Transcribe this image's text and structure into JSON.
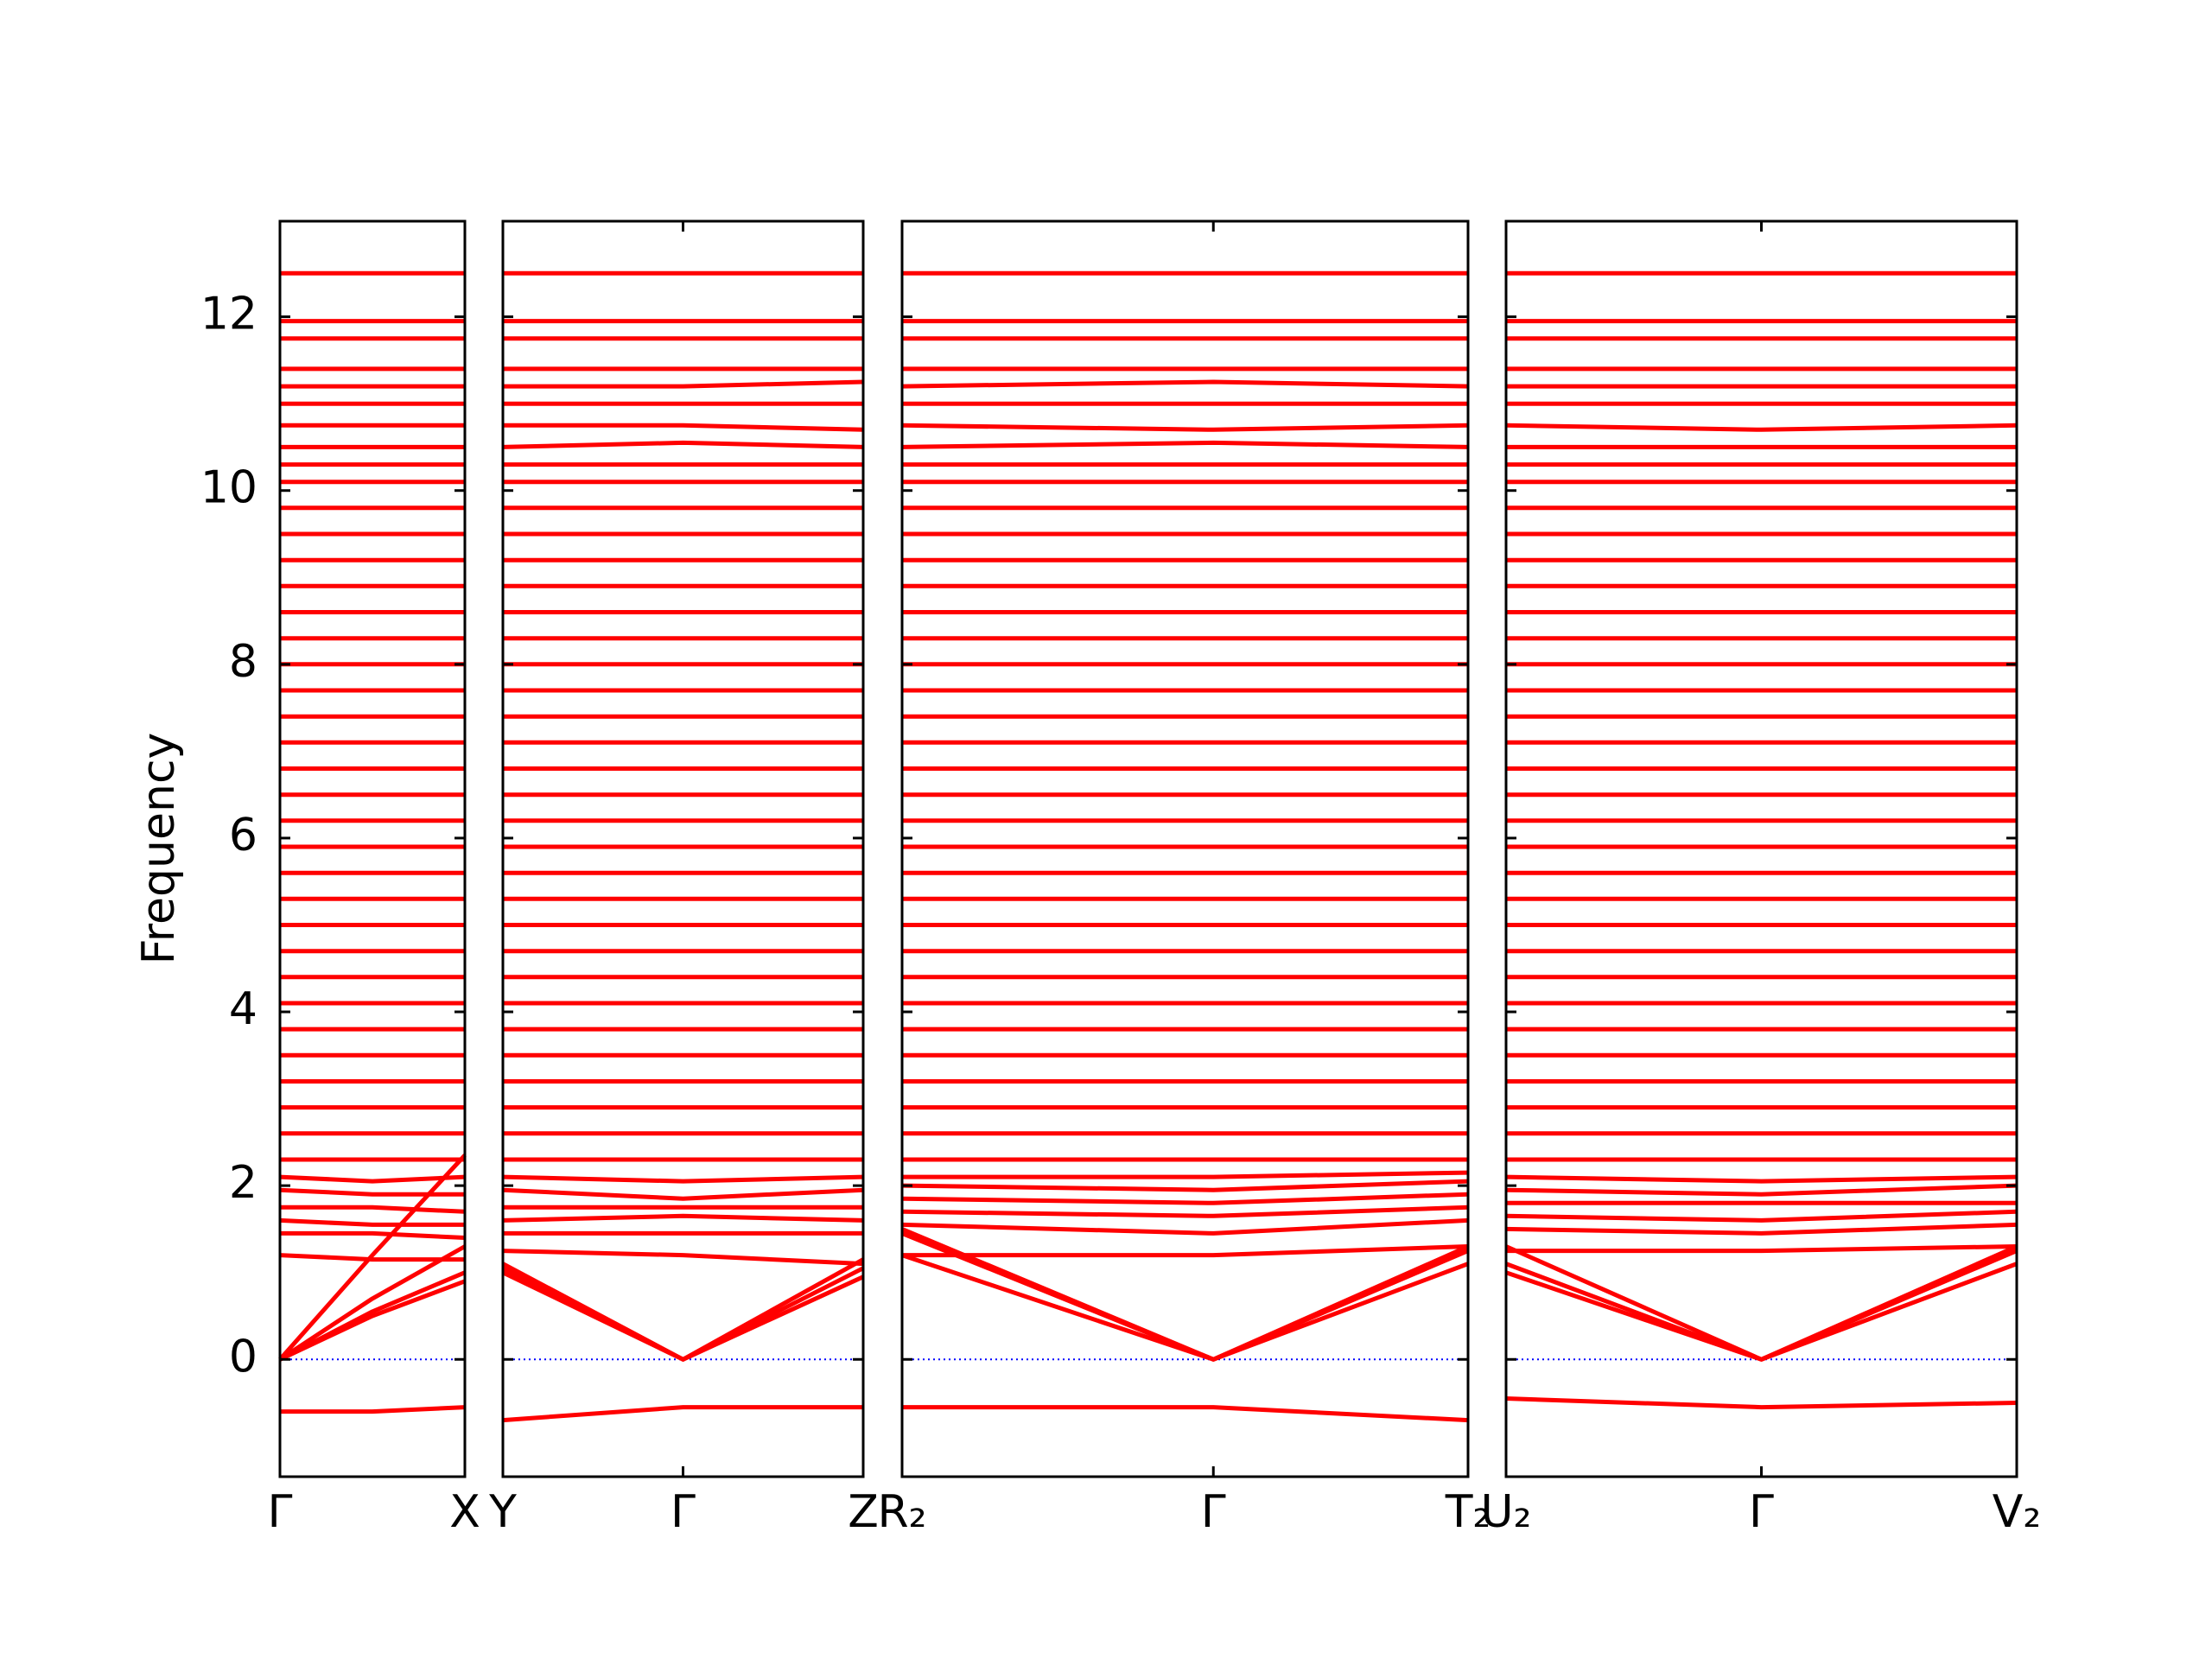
{
  "chart_data": [
    {
      "type": "line",
      "y_label": "Frequency",
      "color": "#ff0000",
      "zero_line": {
        "value": 0,
        "color": "#0000ff"
      },
      "x": [
        0,
        0.5,
        1
      ],
      "xlim": [
        0,
        1
      ],
      "xticks": [
        {
          "value": 0,
          "label": "Γ"
        },
        {
          "value": 1,
          "label": "X"
        }
      ],
      "ylim": [
        -1.35,
        13.1
      ],
      "yticks": [
        0,
        2,
        4,
        6,
        8,
        10,
        12
      ],
      "bands": [
        [
          -0.6,
          -0.6,
          -0.55
        ],
        [
          0,
          0.5,
          0.9
        ],
        [
          0,
          0.55,
          1.0
        ],
        [
          0,
          0.7,
          1.3
        ],
        [
          0,
          1.2,
          2.35
        ],
        [
          1.2,
          1.15,
          1.15
        ],
        [
          1.45,
          1.45,
          1.4
        ],
        [
          1.6,
          1.55,
          1.55
        ],
        [
          1.75,
          1.75,
          1.7
        ],
        [
          1.95,
          1.9,
          1.9
        ],
        [
          2.1,
          2.05,
          2.1
        ],
        [
          2.3,
          2.3,
          2.3
        ],
        [
          2.6,
          2.6,
          2.6
        ],
        [
          2.9,
          2.9,
          2.9
        ],
        [
          3.2,
          3.2,
          3.2
        ],
        [
          3.5,
          3.5,
          3.5
        ],
        [
          3.8,
          3.8,
          3.8
        ],
        [
          4.1,
          4.1,
          4.1
        ],
        [
          4.4,
          4.4,
          4.4
        ],
        [
          4.7,
          4.7,
          4.7
        ],
        [
          5.0,
          5.0,
          5.0
        ],
        [
          5.3,
          5.3,
          5.3
        ],
        [
          5.6,
          5.6,
          5.6
        ],
        [
          5.9,
          5.9,
          5.9
        ],
        [
          6.2,
          6.2,
          6.2
        ],
        [
          6.5,
          6.5,
          6.5
        ],
        [
          6.8,
          6.8,
          6.8
        ],
        [
          7.1,
          7.1,
          7.1
        ],
        [
          7.4,
          7.4,
          7.4
        ],
        [
          7.7,
          7.7,
          7.7
        ],
        [
          8.0,
          8.0,
          8.0
        ],
        [
          8.3,
          8.3,
          8.3
        ],
        [
          8.6,
          8.6,
          8.6
        ],
        [
          8.9,
          8.9,
          8.9
        ],
        [
          9.2,
          9.2,
          9.2
        ],
        [
          9.5,
          9.5,
          9.5
        ],
        [
          9.8,
          9.8,
          9.8
        ],
        [
          10.1,
          10.1,
          10.1
        ],
        [
          10.3,
          10.3,
          10.3
        ],
        [
          10.5,
          10.5,
          10.5
        ],
        [
          10.75,
          10.75,
          10.75
        ],
        [
          11.0,
          11.0,
          11.0
        ],
        [
          11.2,
          11.2,
          11.2
        ],
        [
          11.4,
          11.4,
          11.4
        ],
        [
          11.75,
          11.75,
          11.75
        ],
        [
          11.95,
          11.95,
          11.95
        ],
        [
          12.5,
          12.5,
          12.5
        ]
      ]
    },
    {
      "type": "line",
      "color": "#ff0000",
      "zero_line": {
        "value": 0,
        "color": "#0000ff"
      },
      "x": [
        0,
        0.5,
        1
      ],
      "xlim": [
        0,
        1
      ],
      "xticks": [
        {
          "value": 0,
          "label": "Y"
        },
        {
          "value": 0.5,
          "label": "Γ"
        },
        {
          "value": 1,
          "label": "Z"
        }
      ],
      "ylim": [
        -1.35,
        13.1
      ],
      "bands": [
        [
          -0.7,
          -0.55,
          -0.55
        ],
        [
          1.05,
          0,
          1.05
        ],
        [
          1.0,
          0,
          0.95
        ],
        [
          1.1,
          0,
          1.15
        ],
        [
          1.25,
          1.2,
          1.1
        ],
        [
          1.45,
          1.45,
          1.45
        ],
        [
          1.6,
          1.65,
          1.6
        ],
        [
          1.75,
          1.75,
          1.75
        ],
        [
          1.95,
          1.85,
          1.95
        ],
        [
          2.1,
          2.05,
          2.1
        ],
        [
          2.3,
          2.3,
          2.3
        ],
        [
          2.6,
          2.6,
          2.6
        ],
        [
          2.9,
          2.9,
          2.9
        ],
        [
          3.2,
          3.2,
          3.2
        ],
        [
          3.5,
          3.5,
          3.5
        ],
        [
          3.8,
          3.8,
          3.8
        ],
        [
          4.1,
          4.1,
          4.1
        ],
        [
          4.4,
          4.4,
          4.4
        ],
        [
          4.7,
          4.7,
          4.7
        ],
        [
          5.0,
          5.0,
          5.0
        ],
        [
          5.3,
          5.3,
          5.3
        ],
        [
          5.6,
          5.6,
          5.6
        ],
        [
          5.9,
          5.9,
          5.9
        ],
        [
          6.2,
          6.2,
          6.2
        ],
        [
          6.5,
          6.5,
          6.5
        ],
        [
          6.8,
          6.8,
          6.8
        ],
        [
          7.1,
          7.1,
          7.1
        ],
        [
          7.4,
          7.4,
          7.4
        ],
        [
          7.7,
          7.7,
          7.7
        ],
        [
          8.0,
          8.0,
          8.0
        ],
        [
          8.3,
          8.3,
          8.3
        ],
        [
          8.6,
          8.6,
          8.6
        ],
        [
          8.9,
          8.9,
          8.9
        ],
        [
          9.2,
          9.2,
          9.2
        ],
        [
          9.5,
          9.5,
          9.5
        ],
        [
          9.8,
          9.8,
          9.8
        ],
        [
          10.1,
          10.1,
          10.1
        ],
        [
          10.3,
          10.3,
          10.3
        ],
        [
          10.5,
          10.55,
          10.5
        ],
        [
          10.75,
          10.75,
          10.7
        ],
        [
          11.0,
          11.0,
          11.0
        ],
        [
          11.2,
          11.2,
          11.25
        ],
        [
          11.4,
          11.4,
          11.4
        ],
        [
          11.75,
          11.75,
          11.75
        ],
        [
          11.95,
          11.95,
          11.95
        ],
        [
          12.5,
          12.5,
          12.5
        ]
      ]
    },
    {
      "type": "line",
      "color": "#ff0000",
      "zero_line": {
        "value": 0,
        "color": "#0000ff"
      },
      "x": [
        0,
        0.55,
        1
      ],
      "xlim": [
        0,
        1
      ],
      "xticks": [
        {
          "value": 0,
          "label": "R₂"
        },
        {
          "value": 0.55,
          "label": "Γ"
        },
        {
          "value": 1,
          "label": "T₂"
        }
      ],
      "ylim": [
        -1.35,
        13.1
      ],
      "bands": [
        [
          -0.55,
          -0.55,
          -0.7
        ],
        [
          1.5,
          0,
          1.1
        ],
        [
          1.45,
          0,
          1.25
        ],
        [
          1.2,
          0,
          1.3
        ],
        [
          1.2,
          1.2,
          1.3
        ],
        [
          1.55,
          1.45,
          1.6
        ],
        [
          1.7,
          1.65,
          1.75
        ],
        [
          1.85,
          1.8,
          1.9
        ],
        [
          2.0,
          1.95,
          2.05
        ],
        [
          2.1,
          2.1,
          2.15
        ],
        [
          2.3,
          2.3,
          2.3
        ],
        [
          2.6,
          2.6,
          2.6
        ],
        [
          2.9,
          2.9,
          2.9
        ],
        [
          3.2,
          3.2,
          3.2
        ],
        [
          3.5,
          3.5,
          3.5
        ],
        [
          3.8,
          3.8,
          3.8
        ],
        [
          4.1,
          4.1,
          4.1
        ],
        [
          4.4,
          4.4,
          4.4
        ],
        [
          4.7,
          4.7,
          4.7
        ],
        [
          5.0,
          5.0,
          5.0
        ],
        [
          5.3,
          5.3,
          5.3
        ],
        [
          5.6,
          5.6,
          5.6
        ],
        [
          5.9,
          5.9,
          5.9
        ],
        [
          6.2,
          6.2,
          6.2
        ],
        [
          6.5,
          6.5,
          6.5
        ],
        [
          6.8,
          6.8,
          6.8
        ],
        [
          7.1,
          7.1,
          7.1
        ],
        [
          7.4,
          7.4,
          7.4
        ],
        [
          7.7,
          7.7,
          7.7
        ],
        [
          8.0,
          8.0,
          8.0
        ],
        [
          8.3,
          8.3,
          8.3
        ],
        [
          8.6,
          8.6,
          8.6
        ],
        [
          8.9,
          8.9,
          8.9
        ],
        [
          9.2,
          9.2,
          9.2
        ],
        [
          9.5,
          9.5,
          9.5
        ],
        [
          9.8,
          9.8,
          9.8
        ],
        [
          10.1,
          10.1,
          10.1
        ],
        [
          10.3,
          10.3,
          10.3
        ],
        [
          10.5,
          10.55,
          10.5
        ],
        [
          10.75,
          10.7,
          10.75
        ],
        [
          11.0,
          11.0,
          11.0
        ],
        [
          11.2,
          11.25,
          11.2
        ],
        [
          11.4,
          11.4,
          11.4
        ],
        [
          11.75,
          11.75,
          11.75
        ],
        [
          11.95,
          11.95,
          11.95
        ],
        [
          12.5,
          12.5,
          12.5
        ]
      ]
    },
    {
      "type": "line",
      "color": "#ff0000",
      "zero_line": {
        "value": 0,
        "color": "#0000ff"
      },
      "x": [
        0,
        0.5,
        1
      ],
      "xlim": [
        0,
        1
      ],
      "xticks": [
        {
          "value": 0,
          "label": "U₂"
        },
        {
          "value": 0.5,
          "label": "Γ"
        },
        {
          "value": 1,
          "label": "V₂"
        }
      ],
      "ylim": [
        -1.35,
        13.1
      ],
      "bands": [
        [
          -0.45,
          -0.55,
          -0.5
        ],
        [
          1.0,
          0,
          1.1
        ],
        [
          1.3,
          0,
          1.25
        ],
        [
          1.1,
          0,
          1.3
        ],
        [
          1.25,
          1.25,
          1.3
        ],
        [
          1.5,
          1.45,
          1.55
        ],
        [
          1.65,
          1.6,
          1.7
        ],
        [
          1.8,
          1.8,
          1.8
        ],
        [
          1.95,
          1.9,
          2.0
        ],
        [
          2.1,
          2.05,
          2.1
        ],
        [
          2.3,
          2.3,
          2.3
        ],
        [
          2.6,
          2.6,
          2.6
        ],
        [
          2.9,
          2.9,
          2.9
        ],
        [
          3.2,
          3.2,
          3.2
        ],
        [
          3.5,
          3.5,
          3.5
        ],
        [
          3.8,
          3.8,
          3.8
        ],
        [
          4.1,
          4.1,
          4.1
        ],
        [
          4.4,
          4.4,
          4.4
        ],
        [
          4.7,
          4.7,
          4.7
        ],
        [
          5.0,
          5.0,
          5.0
        ],
        [
          5.3,
          5.3,
          5.3
        ],
        [
          5.6,
          5.6,
          5.6
        ],
        [
          5.9,
          5.9,
          5.9
        ],
        [
          6.2,
          6.2,
          6.2
        ],
        [
          6.5,
          6.5,
          6.5
        ],
        [
          6.8,
          6.8,
          6.8
        ],
        [
          7.1,
          7.1,
          7.1
        ],
        [
          7.4,
          7.4,
          7.4
        ],
        [
          7.7,
          7.7,
          7.7
        ],
        [
          8.0,
          8.0,
          8.0
        ],
        [
          8.3,
          8.3,
          8.3
        ],
        [
          8.6,
          8.6,
          8.6
        ],
        [
          8.9,
          8.9,
          8.9
        ],
        [
          9.2,
          9.2,
          9.2
        ],
        [
          9.5,
          9.5,
          9.5
        ],
        [
          9.8,
          9.8,
          9.8
        ],
        [
          10.1,
          10.1,
          10.1
        ],
        [
          10.3,
          10.3,
          10.3
        ],
        [
          10.5,
          10.5,
          10.5
        ],
        [
          10.75,
          10.7,
          10.75
        ],
        [
          11.0,
          11.0,
          11.0
        ],
        [
          11.2,
          11.2,
          11.2
        ],
        [
          11.4,
          11.4,
          11.4
        ],
        [
          11.75,
          11.75,
          11.75
        ],
        [
          11.95,
          11.95,
          11.95
        ],
        [
          12.5,
          12.5,
          12.5
        ]
      ]
    }
  ]
}
